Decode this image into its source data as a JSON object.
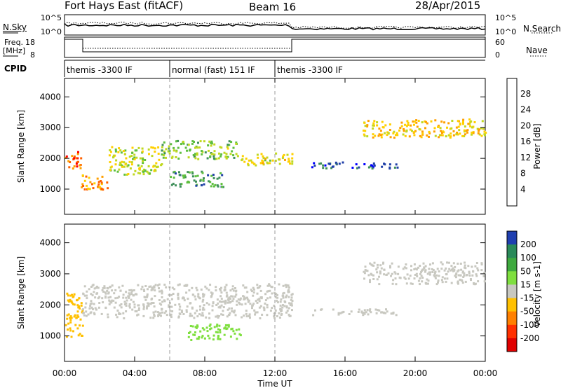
{
  "header": {
    "station": "Fort Hays East (fitACF)",
    "beam": "Beam 16",
    "date": "28/Apr/2015"
  },
  "top_panels": {
    "nsky_label": "N.Sky",
    "nsky_ticks": [
      "10^5",
      "10^0"
    ],
    "nsearch_label": "N.Search",
    "nsearch_ticks": [
      "10^5",
      "10^0"
    ],
    "freq_label_1": "Freq.",
    "freq_label_2": "[MHz]",
    "freq_ticks": [
      "18",
      "8"
    ],
    "nave_label": "Nave",
    "nave_ticks": [
      "60",
      "0"
    ],
    "cpid_label": "CPID"
  },
  "cpid_segments": [
    {
      "label": "themis -3300 IF",
      "start_hour": 0,
      "end_hour": 6
    },
    {
      "label": "normal (fast) 151 IF",
      "start_hour": 6,
      "end_hour": 12
    },
    {
      "label": "themis -3300 IF",
      "start_hour": 12,
      "end_hour": 24
    }
  ],
  "x_axis": {
    "label": "Time UT",
    "ticks": [
      "00:00",
      "04:00",
      "08:00",
      "12:00",
      "16:00",
      "20:00",
      "00:00"
    ]
  },
  "power_panel": {
    "ylabel": "Slant Range [km]",
    "yticks": [
      "4000",
      "3000",
      "2000",
      "1000"
    ],
    "colorbar_label": "Power [dB]",
    "colorbar_ticks": [
      "28",
      "24",
      "20",
      "16",
      "12",
      "8",
      "4"
    ],
    "colors": [
      "#0000ff",
      "#1f3fa8",
      "#3f8f5a",
      "#5fbf3f",
      "#c0d820",
      "#ffd000",
      "#ffa000",
      "#ff6000",
      "#ff0000"
    ]
  },
  "velocity_panel": {
    "ylabel": "Slant Range [km]",
    "yticks": [
      "4000",
      "3000",
      "2000",
      "1000"
    ],
    "colorbar_label": "Velocity [m s-1]",
    "colorbar_ticks": [
      "200",
      "100",
      "50",
      "15",
      "-15",
      "-50",
      "-100",
      "-200"
    ],
    "colors": [
      "#1f3fb0",
      "#2a8a5a",
      "#3faa3f",
      "#7fdf3f",
      "#c8c8c0",
      "#ffc000",
      "#ff8000",
      "#ff3000",
      "#e00000"
    ]
  },
  "chart_data": [
    {
      "type": "heatmap",
      "title": "",
      "xlabel": "Time UT",
      "ylabel": "Slant Range [km]",
      "xlim": [
        0,
        24
      ],
      "ylim": [
        180,
        4600
      ],
      "colorbar": "Power [dB]",
      "bands": [
        {
          "x": [
            0.0,
            0.9
          ],
          "y": [
            1700,
            2300
          ],
          "value": 26
        },
        {
          "x": [
            0.9,
            2.5
          ],
          "y": [
            1000,
            1500
          ],
          "value": 24
        },
        {
          "x": [
            2.5,
            5.5
          ],
          "y": [
            1500,
            2400
          ],
          "value": 16
        },
        {
          "x": [
            5.5,
            10.0
          ],
          "y": [
            2000,
            2600
          ],
          "value": 14
        },
        {
          "x": [
            10.0,
            13.0
          ],
          "y": [
            1800,
            2200
          ],
          "value": 18
        },
        {
          "x": [
            6.0,
            9.0
          ],
          "y": [
            1100,
            1600
          ],
          "value": 10
        },
        {
          "x": [
            14.0,
            19.0
          ],
          "y": [
            1700,
            1900
          ],
          "value": 6
        },
        {
          "x": [
            17.0,
            24.0
          ],
          "y": [
            2700,
            3300
          ],
          "value": 20
        }
      ]
    },
    {
      "type": "heatmap",
      "title": "",
      "xlabel": "Time UT",
      "ylabel": "Slant Range [km]",
      "xlim": [
        0,
        24
      ],
      "ylim": [
        180,
        4600
      ],
      "colorbar": "Velocity [m s-1]",
      "bands": [
        {
          "x": [
            0.0,
            1.0
          ],
          "y": [
            1000,
            2400
          ],
          "value": -40
        },
        {
          "x": [
            1.0,
            13.0
          ],
          "y": [
            1600,
            2700
          ],
          "value": 0
        },
        {
          "x": [
            7.0,
            10.0
          ],
          "y": [
            900,
            1400
          ],
          "value": 30
        },
        {
          "x": [
            14.0,
            19.0
          ],
          "y": [
            1700,
            1900
          ],
          "value": 0
        },
        {
          "x": [
            17.0,
            24.0
          ],
          "y": [
            2700,
            3400
          ],
          "value": 0
        }
      ]
    }
  ]
}
